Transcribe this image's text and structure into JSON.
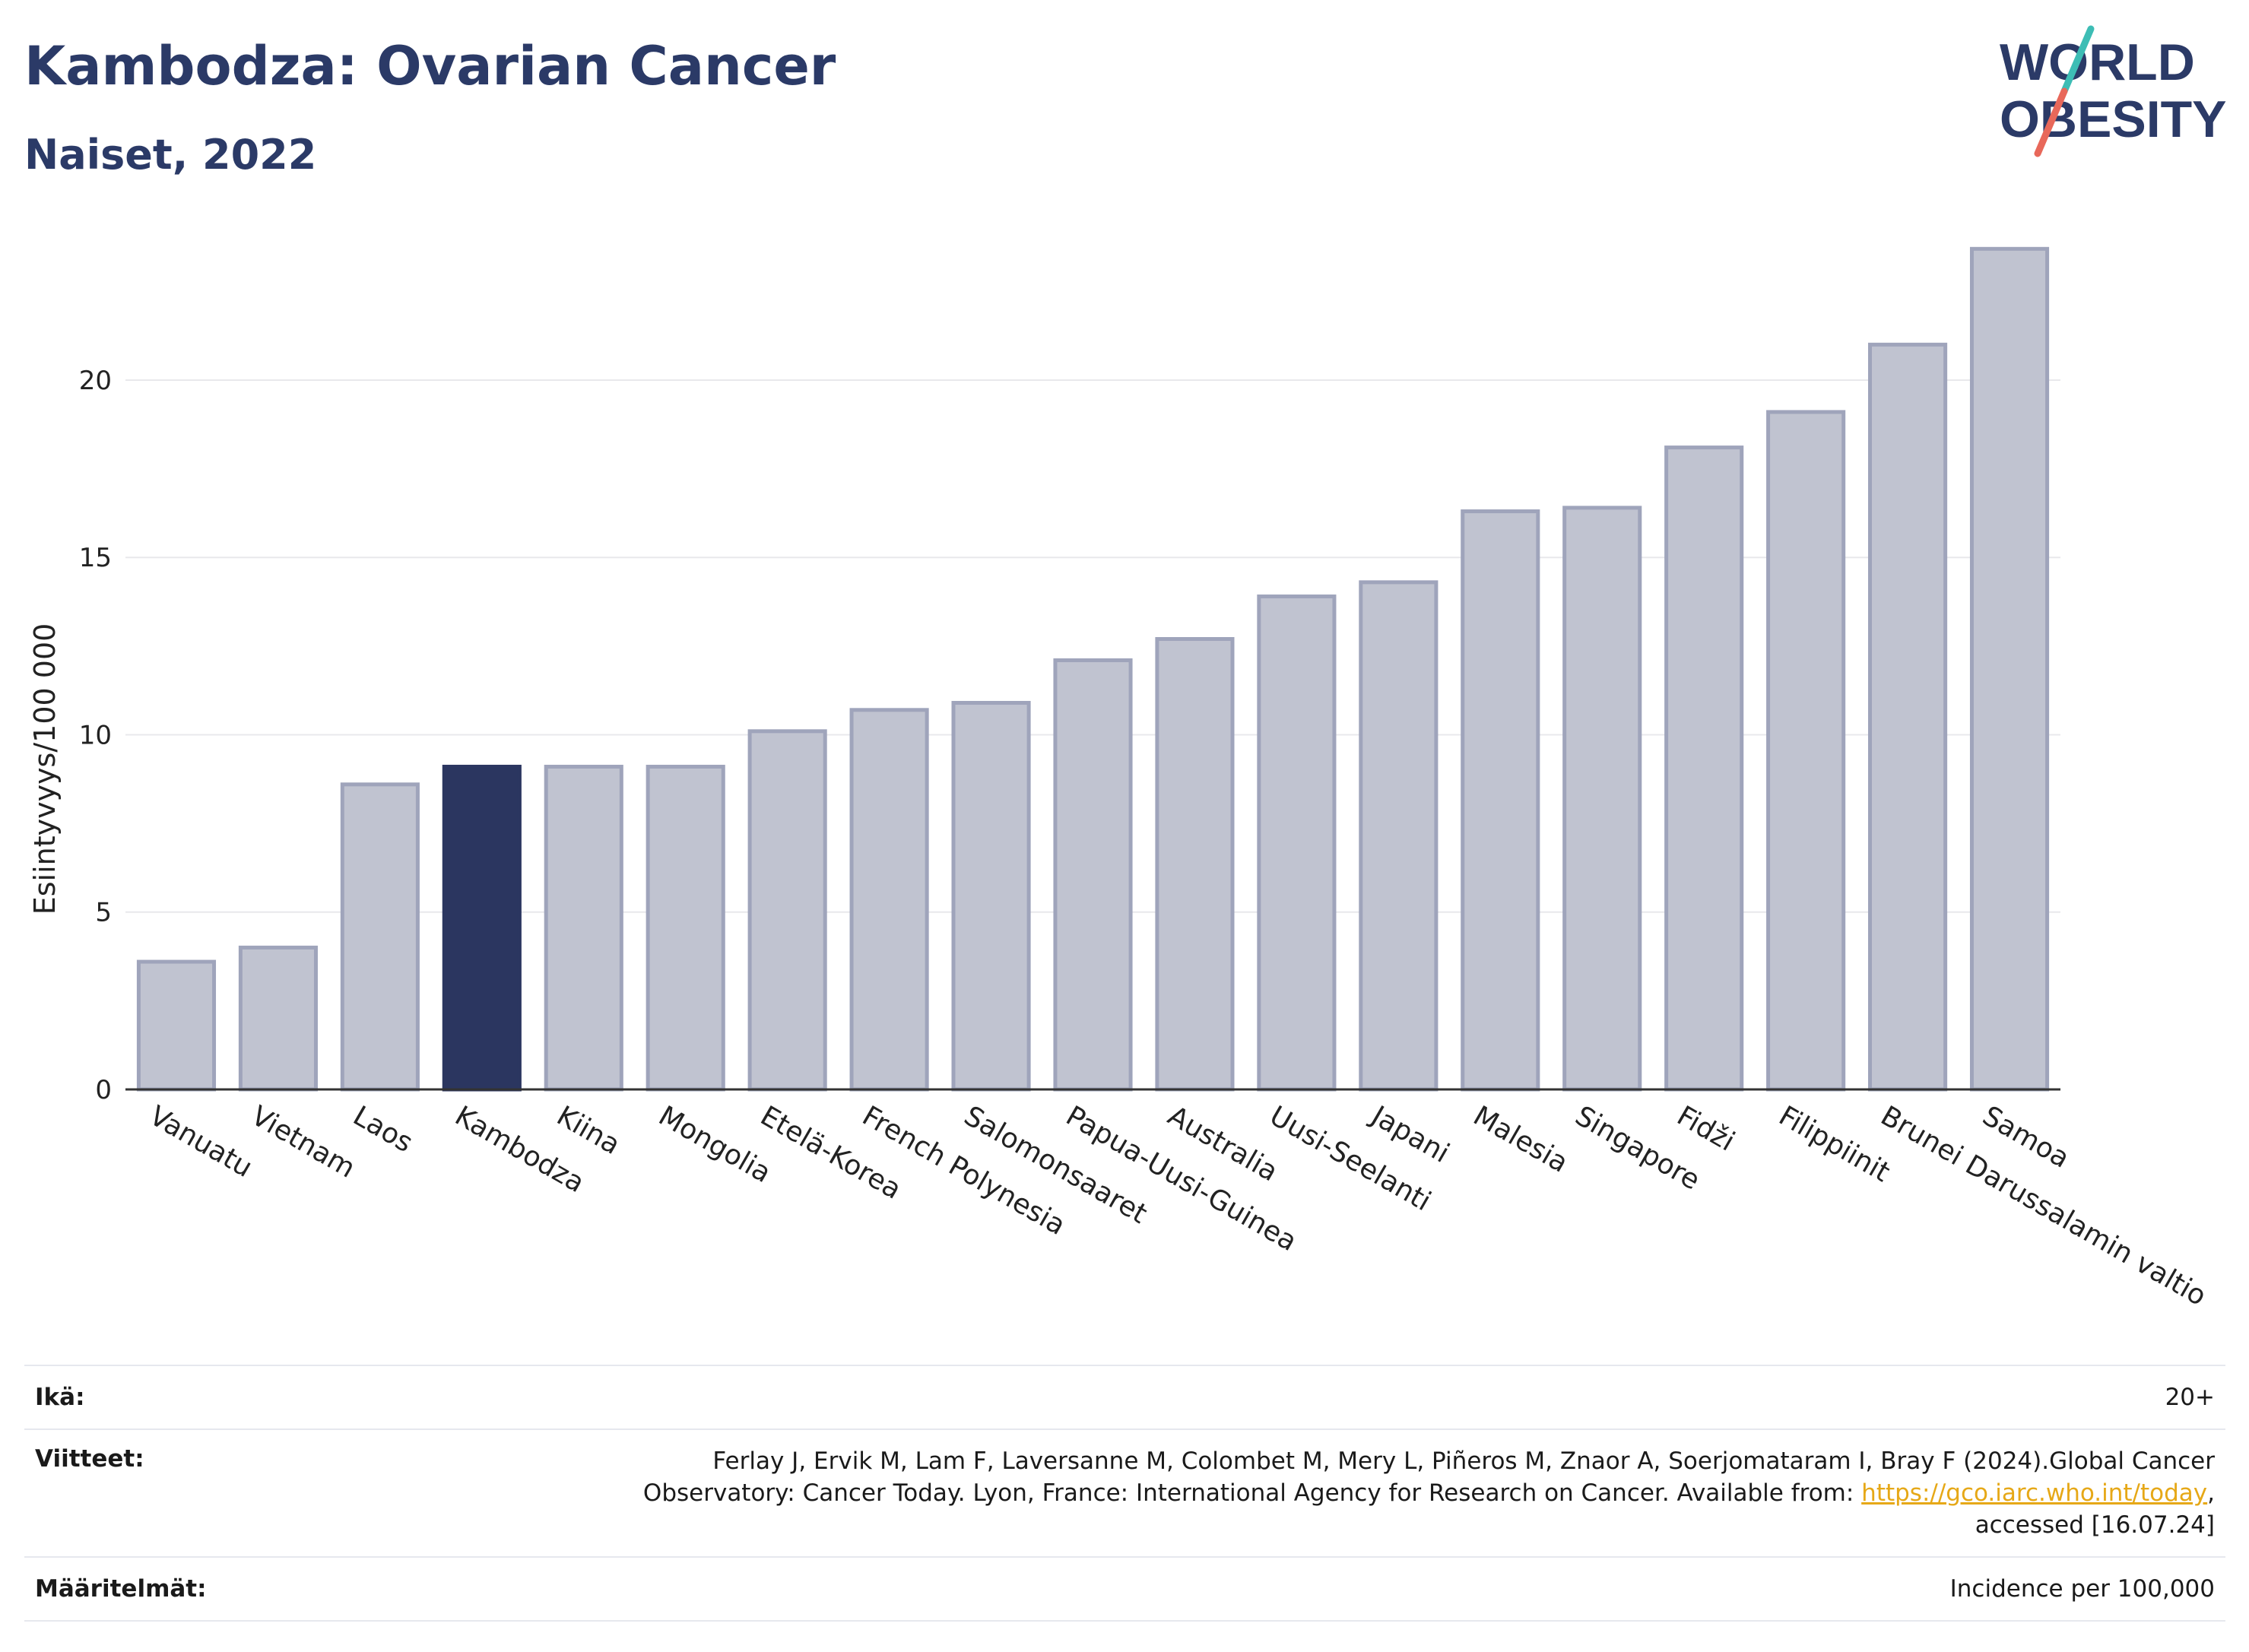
{
  "header": {
    "title": "Kambodza: Ovarian Cancer",
    "subtitle": "Naiset, 2022"
  },
  "logo": {
    "line1": "WORLD",
    "line2": "OBESITY",
    "colors": {
      "text": "#2b3a67",
      "slash_top": "#3dbdb5",
      "slash_bottom": "#e8685a"
    }
  },
  "chart_data": {
    "type": "bar",
    "categories": [
      "Vanuatu",
      "Vietnam",
      "Laos",
      "Kambodza",
      "Kiina",
      "Mongolia",
      "Etelä-Korea",
      "French Polynesia",
      "Salomonsaaret",
      "Papua-Uusi-Guinea",
      "Australia",
      "Uusi-Seelanti",
      "Japani",
      "Malesia",
      "Singapore",
      "Fidži",
      "Filippiinit",
      "Brunei Darussalamin valtio",
      "Samoa"
    ],
    "values": [
      3.6,
      4.0,
      8.6,
      9.1,
      9.1,
      9.1,
      10.1,
      10.7,
      10.9,
      12.1,
      12.7,
      13.9,
      14.3,
      16.3,
      16.4,
      18.1,
      19.1,
      21.0,
      23.7
    ],
    "highlight": "Kambodza",
    "ylabel": "Esiintyvyys/100 000",
    "yticks": [
      "0",
      "5",
      "10",
      "15",
      "20"
    ],
    "ylim": [
      0,
      24.5
    ],
    "grid": true,
    "colors": {
      "bar": "#c0c3d0",
      "bar_edge": "#9fa4bb",
      "highlight": "#2b3660",
      "axis": "#333333",
      "grid": "#e8e8ec"
    }
  },
  "info": {
    "age_label": "Ikä:",
    "age_value": "20+",
    "ref_label": "Viitteet:",
    "ref_text": "Ferlay J, Ervik M, Lam F, Laversanne M, Colombet M, Mery L, Piñeros M, Znaor A, Soerjomataram I, Bray F (2024).Global Cancer Observatory: Cancer Today. Lyon, France: International Agency for Research on Cancer. Available from: ",
    "ref_link": "https://gco.iarc.who.int/today",
    "ref_tail": ", accessed [16.07.24]",
    "def_label": "Määritelmät:",
    "def_value": "Incidence per 100,000"
  }
}
